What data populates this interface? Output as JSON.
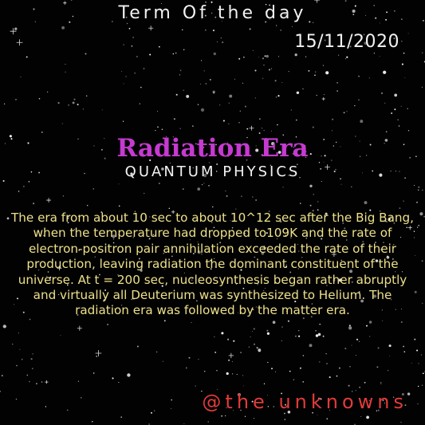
{
  "header": {
    "title": "Term Of the day",
    "date": "15/11/2020"
  },
  "term": {
    "name": "Radiation Era",
    "category": "QUANTUM PHYSICS",
    "definition": "The era from about 10 sec to about 10^12 sec after the Big Bang, when the temperature had dropped to109K and the rate of electron-positron pair annihilation exceeded the rate of their production, leaving radiation the dominant constituent of the universe. At t = 200 sec, nucleosynthesis began rather abruptly and virtually all Deuterium was synthesized to Helium. The radiation era was followed by the matter era."
  },
  "footer": {
    "handle": "@the unknowns"
  },
  "colors": {
    "background": "#020202",
    "title_text": "#f2f2f2",
    "term_name": "#c53ad0",
    "definition_text": "#ece08a",
    "handle_text": "#e23b3b",
    "stars": "#ffffff"
  }
}
